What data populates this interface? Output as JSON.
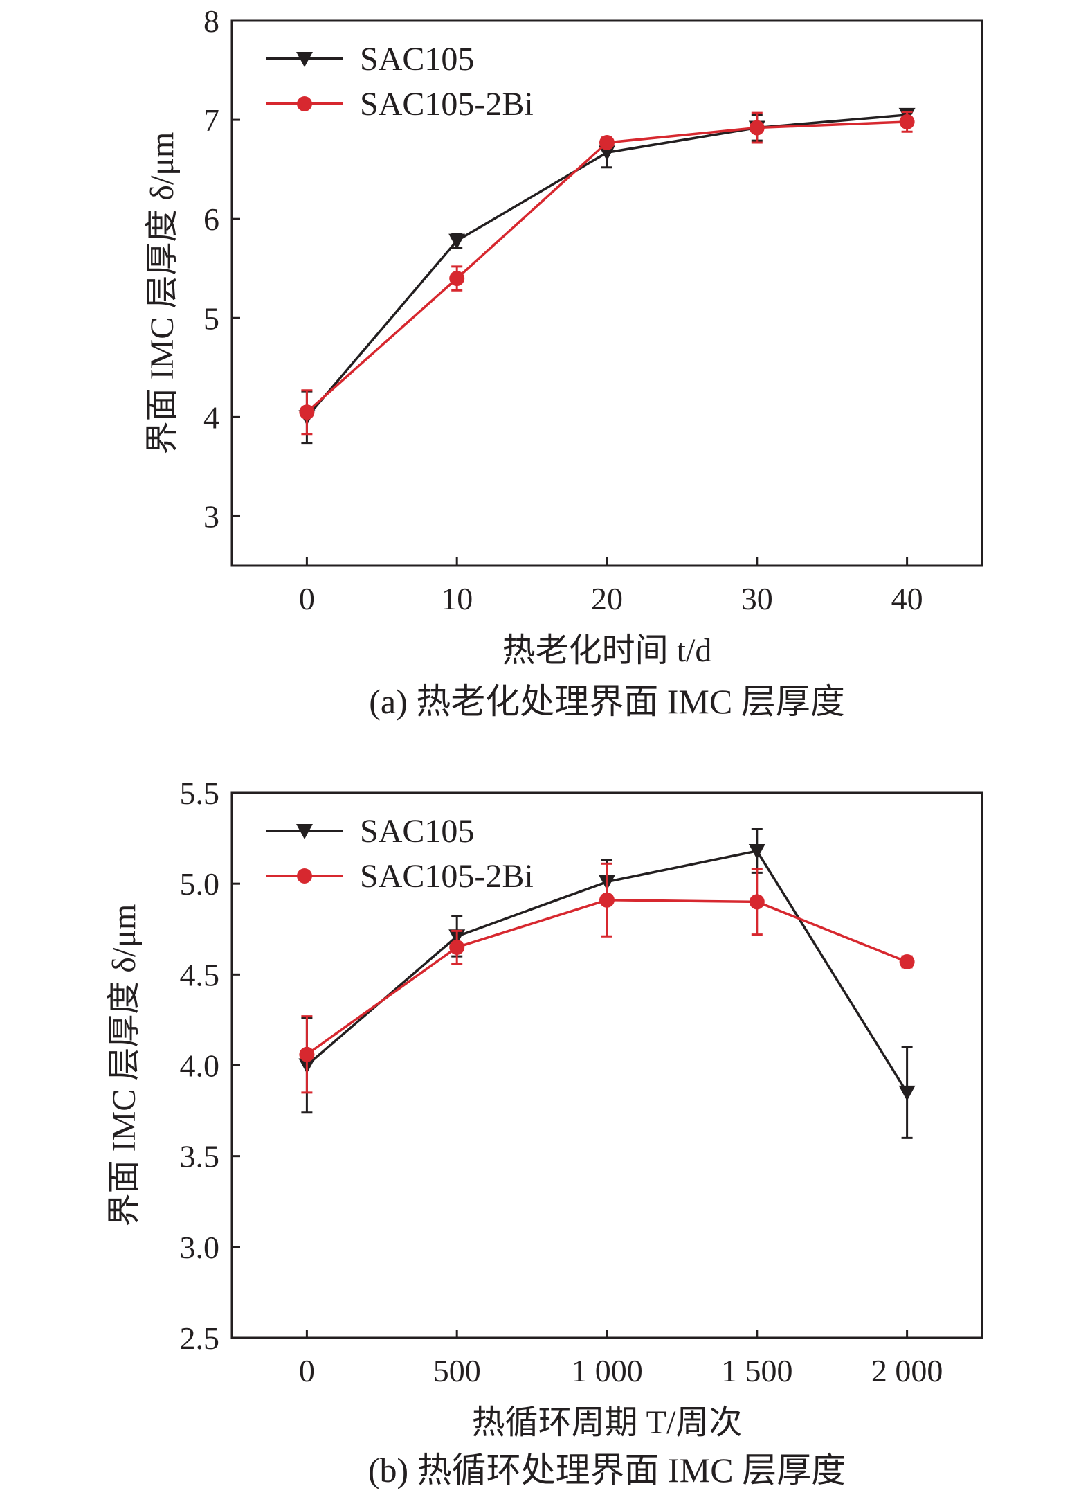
{
  "chart_data": [
    {
      "type": "line",
      "title": "",
      "caption": "(a) 热老化处理界面 IMC 层厚度",
      "xlabel": "热老化时间 t/d",
      "ylabel": "界面 IMC 层厚度 δ/μm",
      "xlim": [
        -5,
        45
      ],
      "ylim": [
        2.5,
        8
      ],
      "x_ticks": [
        0,
        10,
        20,
        30,
        40
      ],
      "x_tick_labels": [
        "0",
        "10",
        "20",
        "30",
        "40"
      ],
      "y_ticks": [
        3,
        4,
        5,
        6,
        7,
        8
      ],
      "y_tick_labels": [
        "3",
        "4",
        "5",
        "6",
        "7",
        "8"
      ],
      "legend_position": "top-left",
      "grid": false,
      "x": [
        0,
        10,
        20,
        30,
        40
      ],
      "series": [
        {
          "name": "SAC105",
          "marker": "triangle-down",
          "color": "#231f20",
          "values": [
            4.0,
            5.78,
            6.67,
            6.92,
            7.05
          ],
          "errors": [
            0.26,
            0.07,
            0.15,
            0.13,
            0.05
          ]
        },
        {
          "name": "SAC105-2Bi",
          "marker": "circle",
          "color": "#d7282f",
          "values": [
            4.05,
            5.4,
            6.77,
            6.92,
            6.98
          ],
          "errors": [
            0.22,
            0.12,
            0.05,
            0.15,
            0.1
          ]
        }
      ]
    },
    {
      "type": "line",
      "title": "",
      "caption": "(b) 热循环处理界面 IMC 层厚度",
      "xlabel": "热循环周期 T/周次",
      "ylabel": "界面 IMC 层厚度 δ/μm",
      "xlim": [
        -250,
        2250
      ],
      "ylim": [
        2.5,
        5.5
      ],
      "x_ticks": [
        0,
        500,
        1000,
        1500,
        2000
      ],
      "x_tick_labels": [
        "0",
        "500",
        "1 000",
        "1 500",
        "2 000"
      ],
      "y_ticks": [
        2.5,
        3.0,
        3.5,
        4.0,
        4.5,
        5.0,
        5.5
      ],
      "y_tick_labels": [
        "2.5",
        "3.0",
        "3.5",
        "4.0",
        "4.5",
        "5.0",
        "5.5"
      ],
      "legend_position": "top-left",
      "grid": false,
      "x": [
        0,
        500,
        1000,
        1500,
        2000
      ],
      "series": [
        {
          "name": "SAC105",
          "marker": "triangle-down",
          "color": "#231f20",
          "values": [
            4.0,
            4.71,
            5.01,
            5.18,
            3.85
          ],
          "errors": [
            0.26,
            0.11,
            0.12,
            0.12,
            0.25
          ]
        },
        {
          "name": "SAC105-2Bi",
          "marker": "circle",
          "color": "#d7282f",
          "values": [
            4.06,
            4.65,
            4.91,
            4.9,
            4.57
          ],
          "errors": [
            0.21,
            0.09,
            0.2,
            0.18,
            0.03
          ]
        }
      ]
    }
  ]
}
